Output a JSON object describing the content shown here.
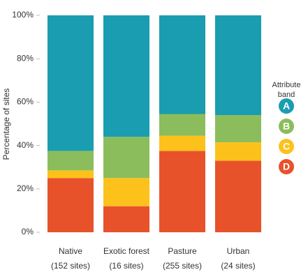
{
  "chart_data": {
    "type": "stacked_bar_percent",
    "y_label": "Percentage of sites",
    "categories": [
      "Native",
      "Exotic forest",
      "Pasture",
      "Urban"
    ],
    "category_sublabels": [
      "(152 sites)",
      "(16 sites)",
      "(255 sites)",
      "(24 sites)"
    ],
    "legend_title": "Attribute band",
    "series": [
      {
        "name": "A",
        "color": "#1a9db0",
        "values": [
          62.5,
          56,
          45.5,
          46
        ]
      },
      {
        "name": "B",
        "color": "#8cbd5c",
        "values": [
          9,
          19,
          10,
          12.5
        ]
      },
      {
        "name": "C",
        "color": "#fcc21b",
        "values": [
          3.5,
          13,
          7,
          8.5
        ]
      },
      {
        "name": "D",
        "color": "#e8522a",
        "values": [
          25,
          12,
          37.5,
          33
        ]
      }
    ],
    "ylim": [
      0,
      100
    ],
    "yticks": [
      {
        "value": 0,
        "label": "0%"
      },
      {
        "value": 20,
        "label": "20%"
      },
      {
        "value": 40,
        "label": "40%"
      },
      {
        "value": 60,
        "label": "60%"
      },
      {
        "value": 80,
        "label": "80%"
      },
      {
        "value": 100,
        "label": "100%"
      }
    ]
  }
}
